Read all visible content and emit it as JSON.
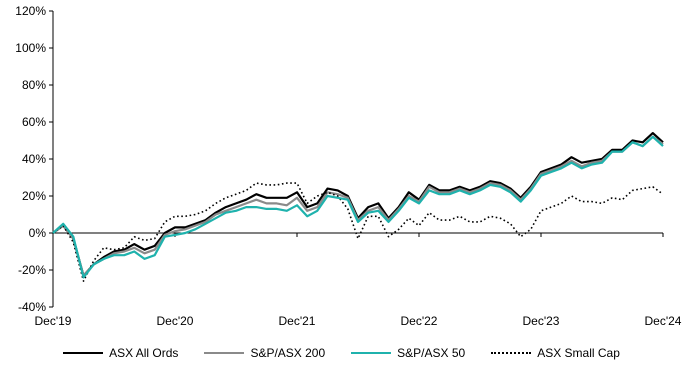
{
  "chart_data": {
    "type": "line",
    "xlabel": "",
    "ylabel": "",
    "x_ticks": [
      "Dec'19",
      "Dec'20",
      "Dec'21",
      "Dec'22",
      "Dec'23",
      "Dec'24"
    ],
    "x_range": [
      0,
      60
    ],
    "y_ticks": [
      "-40%",
      "-20%",
      "0%",
      "20%",
      "40%",
      "60%",
      "80%",
      "100%",
      "120%"
    ],
    "ylim": [
      -40,
      120
    ],
    "y_unit": "%",
    "grid": false,
    "legend_position": "bottom",
    "series": [
      {
        "name": "ASX All Ords",
        "color": "#000000",
        "style": "solid",
        "x": [
          0,
          1,
          2,
          3,
          4,
          5,
          6,
          7,
          8,
          9,
          10,
          11,
          12,
          13,
          14,
          15,
          16,
          17,
          18,
          19,
          20,
          21,
          22,
          23,
          24,
          25,
          26,
          27,
          28,
          29,
          30,
          31,
          32,
          33,
          34,
          35,
          36,
          37,
          38,
          39,
          40,
          41,
          42,
          43,
          44,
          45,
          46,
          47,
          48,
          49,
          50,
          51,
          52,
          53,
          54,
          55,
          56,
          57,
          58,
          59,
          60
        ],
        "y": [
          0,
          4,
          -3,
          -23,
          -17,
          -13,
          -10,
          -9,
          -6,
          -9,
          -7,
          0,
          3,
          3,
          5,
          7,
          11,
          14,
          16,
          18,
          21,
          19,
          19,
          19,
          22,
          14,
          16,
          24,
          23,
          20,
          8,
          14,
          16,
          8,
          14,
          22,
          18,
          26,
          23,
          23,
          25,
          23,
          25,
          28,
          27,
          24,
          19,
          25,
          33,
          35,
          37,
          41,
          38,
          39,
          40,
          45,
          45,
          50,
          49,
          54,
          49
        ]
      },
      {
        "name": "S&P/ASX 200",
        "color": "#8a8a8a",
        "style": "solid",
        "x": [
          0,
          1,
          2,
          3,
          4,
          5,
          6,
          7,
          8,
          9,
          10,
          11,
          12,
          13,
          14,
          15,
          16,
          17,
          18,
          19,
          20,
          21,
          22,
          23,
          24,
          25,
          26,
          27,
          28,
          29,
          30,
          31,
          32,
          33,
          34,
          35,
          36,
          37,
          38,
          39,
          40,
          41,
          42,
          43,
          44,
          45,
          46,
          47,
          48,
          49,
          50,
          51,
          52,
          53,
          54,
          55,
          56,
          57,
          58,
          59,
          60
        ],
        "y": [
          0,
          4,
          -3,
          -23,
          -17,
          -14,
          -11,
          -10,
          -8,
          -11,
          -9,
          -1,
          1,
          2,
          4,
          6,
          10,
          12,
          14,
          16,
          18,
          16,
          16,
          15,
          19,
          12,
          14,
          22,
          21,
          19,
          7,
          12,
          14,
          7,
          13,
          20,
          17,
          25,
          22,
          22,
          24,
          22,
          24,
          27,
          26,
          23,
          18,
          24,
          32,
          34,
          36,
          39,
          36,
          38,
          39,
          44,
          44,
          49,
          47,
          52,
          48
        ]
      },
      {
        "name": "S&P/ASX 50",
        "color": "#1fb2ad",
        "style": "solid",
        "x": [
          0,
          1,
          2,
          3,
          4,
          5,
          6,
          7,
          8,
          9,
          10,
          11,
          12,
          13,
          14,
          15,
          16,
          17,
          18,
          19,
          20,
          21,
          22,
          23,
          24,
          25,
          26,
          27,
          28,
          29,
          30,
          31,
          32,
          33,
          34,
          35,
          36,
          37,
          38,
          39,
          40,
          41,
          42,
          43,
          44,
          45,
          46,
          47,
          48,
          49,
          50,
          51,
          52,
          53,
          54,
          55,
          56,
          57,
          58,
          59,
          60
        ],
        "y": [
          0,
          5,
          -2,
          -24,
          -17,
          -14,
          -12,
          -12,
          -10,
          -14,
          -12,
          -2,
          -1,
          0,
          2,
          5,
          8,
          11,
          12,
          14,
          14,
          13,
          13,
          12,
          15,
          9,
          12,
          20,
          19,
          18,
          6,
          11,
          12,
          6,
          12,
          19,
          16,
          23,
          21,
          21,
          23,
          21,
          23,
          26,
          25,
          22,
          17,
          23,
          31,
          33,
          35,
          38,
          35,
          37,
          38,
          44,
          44,
          49,
          47,
          52,
          47
        ]
      },
      {
        "name": "ASX Small Cap",
        "color": "#000000",
        "style": "dotted",
        "x": [
          0,
          1,
          2,
          3,
          4,
          5,
          6,
          7,
          8,
          9,
          10,
          11,
          12,
          13,
          14,
          15,
          16,
          17,
          18,
          19,
          20,
          21,
          22,
          23,
          24,
          25,
          26,
          27,
          28,
          29,
          30,
          31,
          32,
          33,
          34,
          35,
          36,
          37,
          38,
          39,
          40,
          41,
          42,
          43,
          44,
          45,
          46,
          47,
          48,
          49,
          50,
          51,
          52,
          53,
          54,
          55,
          56,
          57,
          58,
          59,
          60
        ],
        "y": [
          0,
          4,
          -5,
          -26,
          -15,
          -8,
          -9,
          -8,
          -2,
          -4,
          -3,
          6,
          9,
          9,
          10,
          12,
          16,
          19,
          21,
          23,
          27,
          26,
          26,
          27,
          27,
          16,
          20,
          22,
          20,
          13,
          -3,
          9,
          9,
          -2,
          2,
          8,
          4,
          11,
          7,
          7,
          9,
          6,
          6,
          9,
          8,
          5,
          -2,
          2,
          12,
          14,
          16,
          20,
          17,
          17,
          16,
          19,
          18,
          23,
          24,
          25,
          21
        ]
      }
    ]
  }
}
